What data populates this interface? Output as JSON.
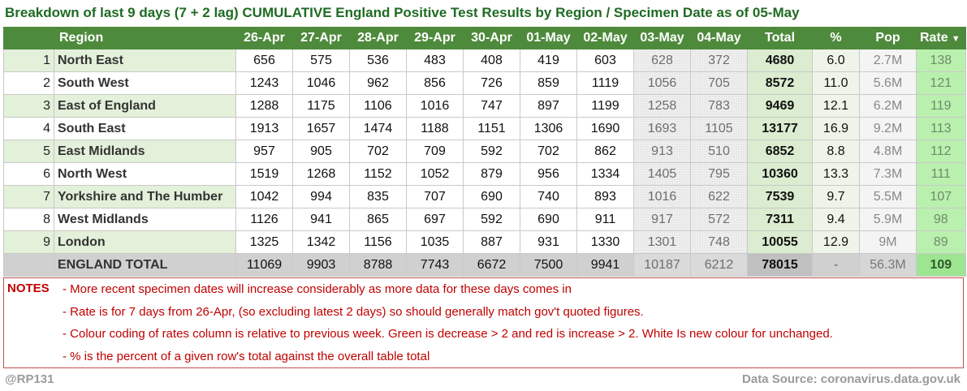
{
  "title": "Breakdown of last 9 days (7 + 2 lag) CUMULATIVE England Positive Test Results by Region / Specimen Date as of 05-May",
  "headers": {
    "region": "Region",
    "dates": [
      "26-Apr",
      "27-Apr",
      "28-Apr",
      "29-Apr",
      "30-Apr",
      "01-May",
      "02-May",
      "03-May",
      "04-May"
    ],
    "total": "Total",
    "pct": "%",
    "pop": "Pop",
    "rate": "Rate",
    "rate_filter_icon": "filter-dropdown-icon"
  },
  "rows": [
    {
      "rank": "1",
      "region": "North East",
      "days": [
        "656",
        "575",
        "536",
        "483",
        "408",
        "419",
        "603",
        "628",
        "372"
      ],
      "total": "4680",
      "pct": "6.0",
      "pop": "2.7M",
      "rate": "138"
    },
    {
      "rank": "2",
      "region": "South West",
      "days": [
        "1243",
        "1046",
        "962",
        "856",
        "726",
        "859",
        "1119",
        "1056",
        "705"
      ],
      "total": "8572",
      "pct": "11.0",
      "pop": "5.6M",
      "rate": "121"
    },
    {
      "rank": "3",
      "region": "East of England",
      "days": [
        "1288",
        "1175",
        "1106",
        "1016",
        "747",
        "897",
        "1199",
        "1258",
        "783"
      ],
      "total": "9469",
      "pct": "12.1",
      "pop": "6.2M",
      "rate": "119"
    },
    {
      "rank": "4",
      "region": "South East",
      "days": [
        "1913",
        "1657",
        "1474",
        "1188",
        "1151",
        "1306",
        "1690",
        "1693",
        "1105"
      ],
      "total": "13177",
      "pct": "16.9",
      "pop": "9.2M",
      "rate": "113"
    },
    {
      "rank": "5",
      "region": "East Midlands",
      "days": [
        "957",
        "905",
        "702",
        "709",
        "592",
        "702",
        "862",
        "913",
        "510"
      ],
      "total": "6852",
      "pct": "8.8",
      "pop": "4.8M",
      "rate": "112"
    },
    {
      "rank": "6",
      "region": "North West",
      "days": [
        "1519",
        "1268",
        "1152",
        "1052",
        "879",
        "956",
        "1334",
        "1405",
        "795"
      ],
      "total": "10360",
      "pct": "13.3",
      "pop": "7.3M",
      "rate": "111"
    },
    {
      "rank": "7",
      "region": "Yorkshire and The Humber",
      "days": [
        "1042",
        "994",
        "835",
        "707",
        "690",
        "740",
        "893",
        "1016",
        "622"
      ],
      "total": "7539",
      "pct": "9.7",
      "pop": "5.5M",
      "rate": "107"
    },
    {
      "rank": "8",
      "region": "West Midlands",
      "days": [
        "1126",
        "941",
        "865",
        "697",
        "592",
        "690",
        "911",
        "917",
        "572"
      ],
      "total": "7311",
      "pct": "9.4",
      "pop": "5.9M",
      "rate": "98"
    },
    {
      "rank": "9",
      "region": "London",
      "days": [
        "1325",
        "1342",
        "1156",
        "1035",
        "887",
        "931",
        "1330",
        "1301",
        "748"
      ],
      "total": "10055",
      "pct": "12.9",
      "pop": "9M",
      "rate": "89"
    }
  ],
  "total_row": {
    "rank": "",
    "region": "ENGLAND TOTAL",
    "days": [
      "11069",
      "9903",
      "8788",
      "7743",
      "6672",
      "7500",
      "9941",
      "10187",
      "6212"
    ],
    "total": "78015",
    "pct": "-",
    "pop": "56.3M",
    "rate": "109"
  },
  "notes": {
    "label": "NOTES",
    "lines": [
      "- More recent specimen dates will increase considerably as more data for these days comes in",
      "- Rate is for 7 days from 26-Apr, (so excluding latest 2 days) so should generally match gov't quoted figures.",
      "- Colour coding of rates column is relative to previous week. Green is decrease > 2 and red is increase > 2. White Is new colour for unchanged.",
      "- % is the percent of a given row's total against the overall table total"
    ]
  },
  "footer": {
    "handle": "@RP131",
    "source": "Data Source: coronavirus.data.gov.uk"
  },
  "colors": {
    "header_bg": "#4e8a3c",
    "title_text": "#1f6b23",
    "notes_text": "#c00000",
    "rate_bg": "#b9f0ae",
    "row_alt_green": "#e3f0da"
  }
}
